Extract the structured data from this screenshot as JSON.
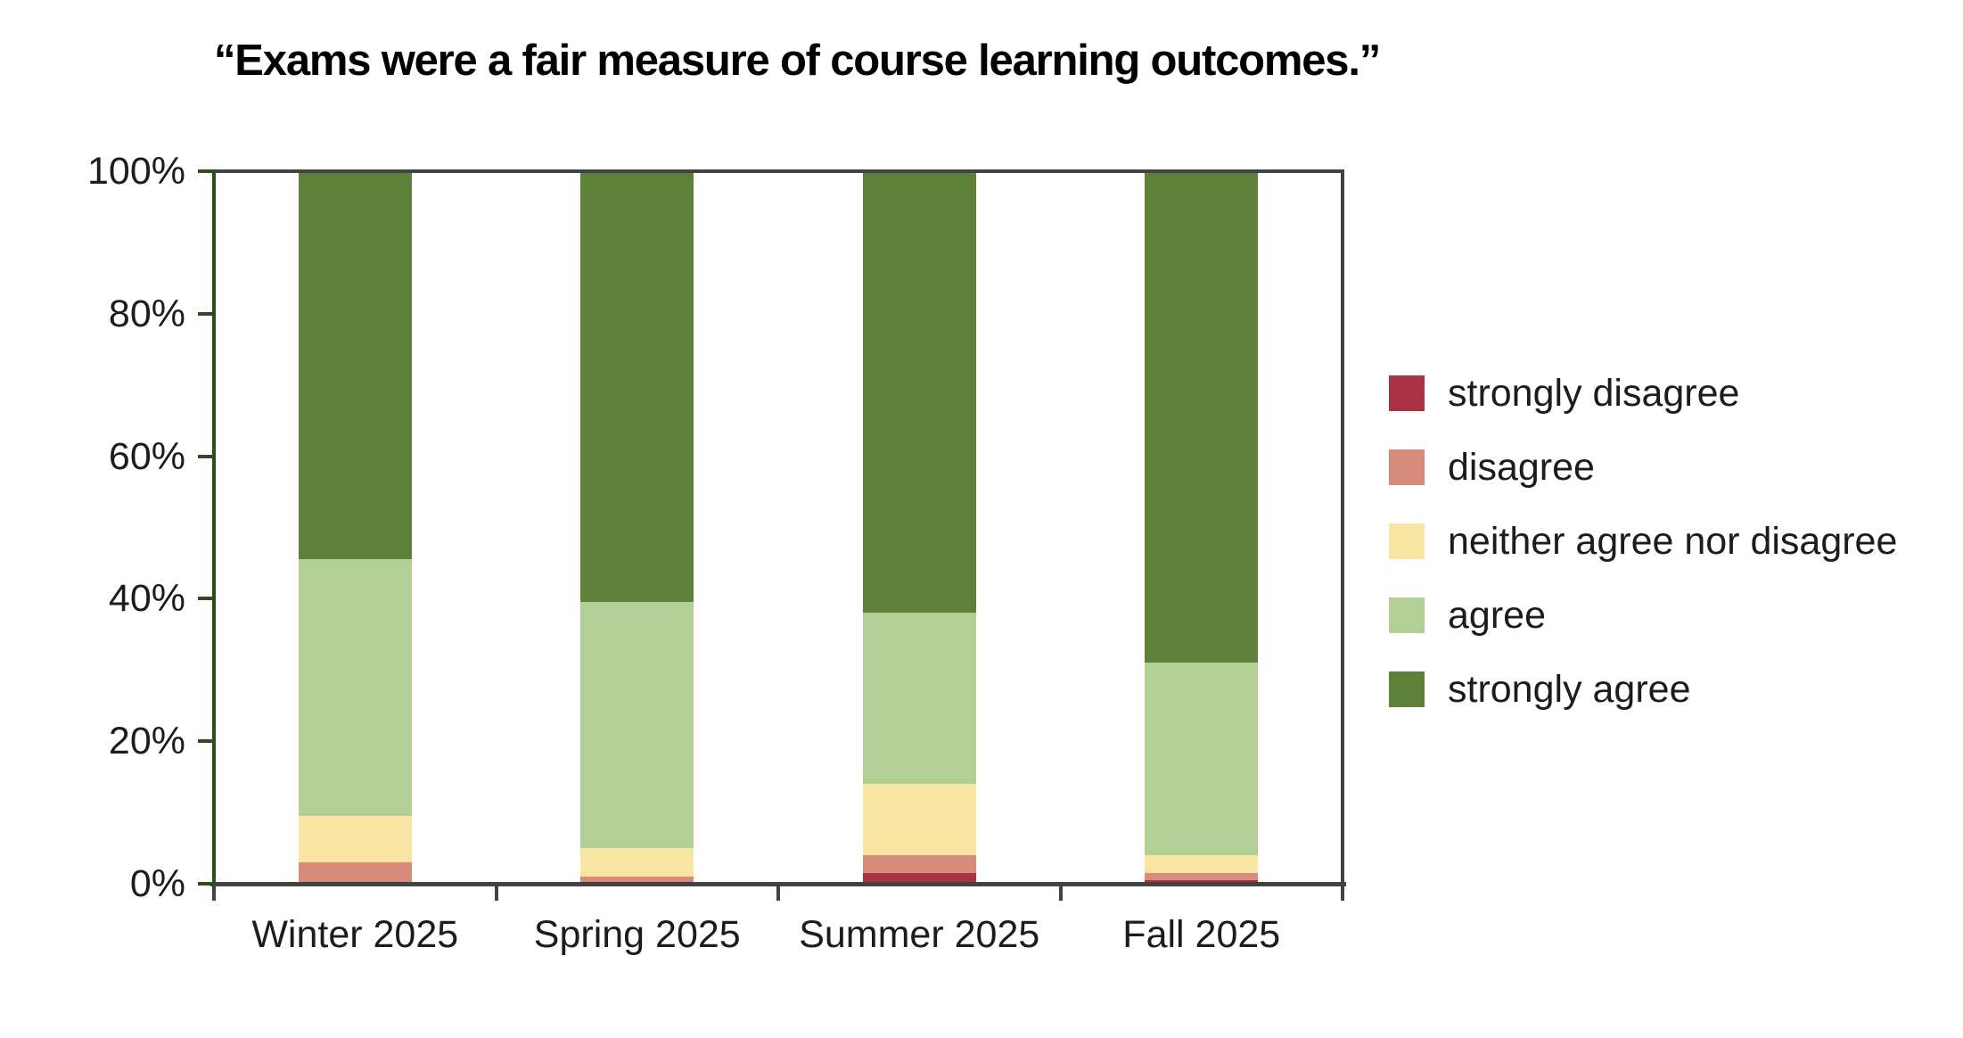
{
  "title": "“Exams were a fair measure of course learning outcomes.”",
  "colors": {
    "strongly_disagree": "#aa3343",
    "disagree": "#d88a7b",
    "neither": "#f9e5a2",
    "agree": "#b2d096",
    "strongly_agree": "#5d8138",
    "axis_frame": "#424242",
    "y_axis_spine": "#2f4c1e",
    "text": "#1c1c1c"
  },
  "chart_data": {
    "type": "bar",
    "stacked": true,
    "unit": "percent",
    "title": "“Exams were a fair measure of course learning outcomes.”",
    "categories": [
      "Winter 2025",
      "Spring 2025",
      "Summer 2025",
      "Fall 2025"
    ],
    "series": [
      {
        "name": "strongly disagree",
        "color": "#aa3343",
        "values": [
          0,
          0,
          1.5,
          0.5
        ]
      },
      {
        "name": "disagree",
        "color": "#d88a7b",
        "values": [
          3,
          1,
          2.5,
          1
        ]
      },
      {
        "name": "neither agree nor disagree",
        "color": "#f9e5a2",
        "values": [
          6.5,
          4,
          10,
          2.5
        ]
      },
      {
        "name": "agree",
        "color": "#b2d096",
        "values": [
          36,
          34.5,
          24,
          27
        ]
      },
      {
        "name": "strongly agree",
        "color": "#5d8138",
        "values": [
          54.5,
          60.5,
          62,
          69
        ]
      }
    ],
    "xlabel": "",
    "ylabel": "",
    "ylim": [
      0,
      100
    ],
    "ytick_labels": [
      "0%",
      "20%",
      "40%",
      "60%",
      "80%",
      "100%"
    ],
    "grid": false,
    "legend_position": "right"
  }
}
